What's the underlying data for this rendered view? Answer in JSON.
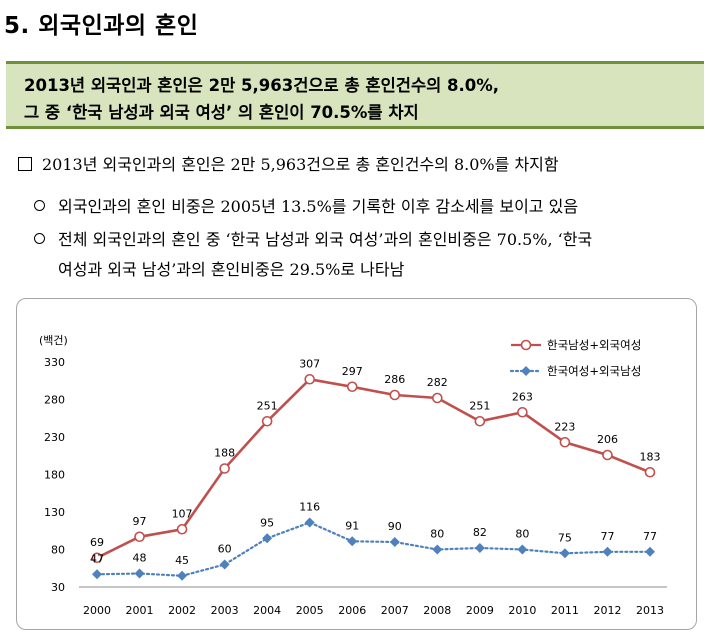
{
  "section": {
    "title": "5. 외국인과의 혼인"
  },
  "summary": {
    "line1": "2013년 외국인과 혼인은 2만 5,963건으로 총 혼인건수의 8.0%,",
    "line2": "그 중 ‘한국 남성과 외국 여성’ 의 혼인이 70.5%를 차지"
  },
  "bullets": {
    "main": "2013년 외국인과의 혼인은 2만 5,963건으로 총 혼인건수의 8.0%를 차지함",
    "sub1": "외국인과의 혼인 비중은 2005년 13.5%를 기록한 이후 감소세를 보이고 있음",
    "sub2_line1": "전체 외국인과의 혼인 중 ‘한국 남성과 외국 여성’과의 혼인비중은 70.5%, ‘한국",
    "sub2_line2": "여성과 외국 남성’과의 혼인비중은 29.5%로 나타남"
  },
  "chart_data": {
    "type": "line",
    "ylabel": "(백건)",
    "ylim": [
      30,
      330
    ],
    "yticks": [
      30,
      80,
      130,
      180,
      230,
      280,
      330
    ],
    "x": [
      "2000",
      "2001",
      "2002",
      "2003",
      "2004",
      "2005",
      "2006",
      "2007",
      "2008",
      "2009",
      "2010",
      "2011",
      "2012",
      "2013"
    ],
    "grid": false,
    "legend_position": "top-right",
    "series": [
      {
        "name": "한국남성+외국여성",
        "color": "#c0504d",
        "marker": "circle",
        "line": "solid",
        "values": [
          69,
          97,
          107,
          188,
          251,
          307,
          297,
          286,
          282,
          251,
          263,
          223,
          206,
          183
        ]
      },
      {
        "name": "한국여성+외국남성",
        "color": "#4f81bd",
        "marker": "diamond",
        "line": "dotted",
        "values": [
          47,
          48,
          45,
          60,
          95,
          116,
          91,
          90,
          80,
          82,
          80,
          75,
          77,
          77
        ]
      }
    ]
  }
}
